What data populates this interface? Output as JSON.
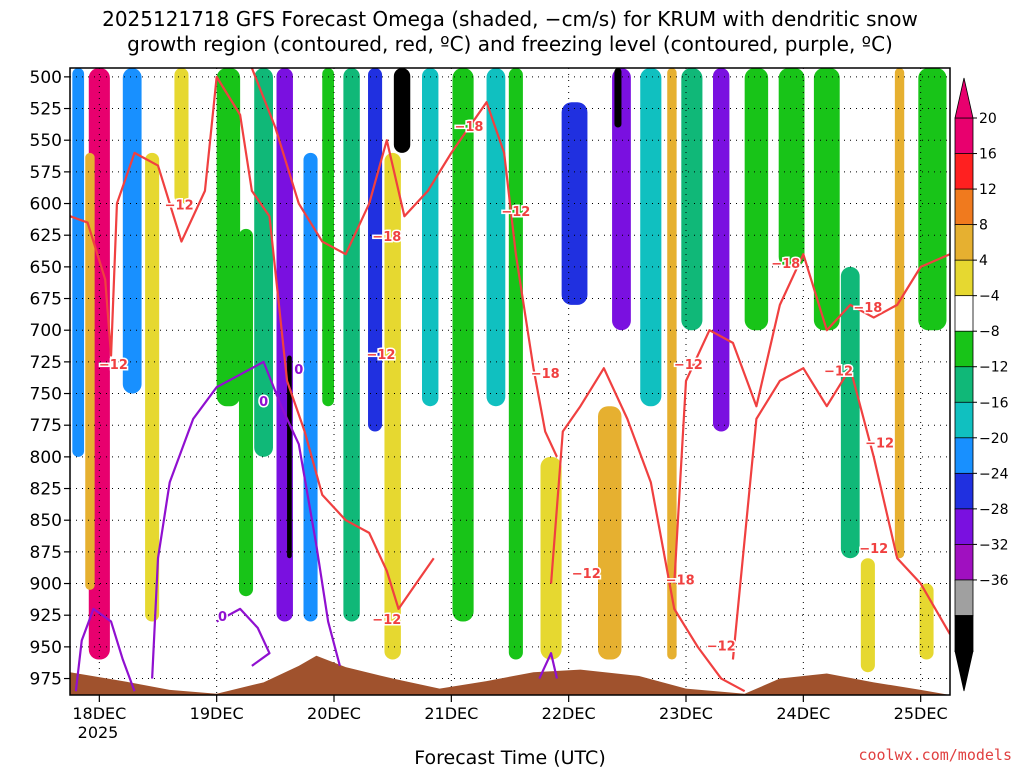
{
  "title": {
    "line1": "2025121718 GFS Forecast Omega (shaded, −cm/s) for KRUM with dendritic snow",
    "line2": "growth region (contoured, red, ºC) and freezing level (contoured, purple, ºC)"
  },
  "footer": {
    "xlabel": "Forecast Time (UTC)",
    "credit": "coolwx.com/models"
  },
  "chart_data": {
    "type": "heatmap",
    "x_axis": {
      "ticks": [
        "18DEC",
        "19DEC",
        "20DEC",
        "21DEC",
        "22DEC",
        "23DEC",
        "24DEC",
        "25DEC"
      ],
      "year_label": "2025",
      "range_days": [
        17.75,
        25.25
      ]
    },
    "y_axis": {
      "ticks": [
        500,
        525,
        550,
        575,
        600,
        625,
        650,
        675,
        700,
        725,
        750,
        775,
        800,
        825,
        850,
        875,
        900,
        925,
        950,
        975
      ],
      "range_hpa": [
        988,
        493
      ],
      "inverted": true
    },
    "grid": "dotted",
    "colorbar": {
      "labels": [
        "20",
        "16",
        "12",
        "8",
        "4",
        "−4",
        "−8",
        "−12",
        "−16",
        "−20",
        "−24",
        "−28",
        "−32",
        "−36"
      ],
      "colors": [
        "#e8006e",
        "#ff2020",
        "#f07a1e",
        "#e6b030",
        "#e6d830",
        "#ffffff",
        "#18c418",
        "#10b878",
        "#10c0c0",
        "#1890ff",
        "#2030e0",
        "#7a10e0",
        "#a010c0",
        "#a0a0a0",
        "#000000"
      ],
      "top_color": "#e8006e",
      "bottom_color": "#000000"
    },
    "omega_columns": [
      {
        "day": 18.0,
        "width": 0.18,
        "p_top": 493,
        "p_bottom": 960,
        "color": "#e8006e"
      },
      {
        "day": 17.92,
        "width": 0.08,
        "p_top": 560,
        "p_bottom": 905,
        "color": "#e6b030"
      },
      {
        "day": 17.82,
        "width": 0.1,
        "p_top": 493,
        "p_bottom": 800,
        "color": "#1890ff"
      },
      {
        "day": 18.28,
        "width": 0.16,
        "p_top": 493,
        "p_bottom": 750,
        "color": "#1890ff"
      },
      {
        "day": 18.45,
        "width": 0.12,
        "p_top": 560,
        "p_bottom": 930,
        "color": "#e6d830"
      },
      {
        "day": 18.7,
        "width": 0.12,
        "p_top": 493,
        "p_bottom": 600,
        "color": "#e6d830"
      },
      {
        "day": 19.1,
        "width": 0.2,
        "p_top": 493,
        "p_bottom": 760,
        "color": "#18c418"
      },
      {
        "day": 19.25,
        "width": 0.12,
        "p_top": 620,
        "p_bottom": 910,
        "color": "#18c418"
      },
      {
        "day": 19.4,
        "width": 0.16,
        "p_top": 493,
        "p_bottom": 800,
        "color": "#10b878"
      },
      {
        "day": 19.58,
        "width": 0.14,
        "p_top": 493,
        "p_bottom": 930,
        "color": "#7a10e0"
      },
      {
        "day": 19.62,
        "width": 0.04,
        "p_top": 720,
        "p_bottom": 880,
        "color": "#000000"
      },
      {
        "day": 19.8,
        "width": 0.12,
        "p_top": 560,
        "p_bottom": 930,
        "color": "#1890ff"
      },
      {
        "day": 19.95,
        "width": 0.1,
        "p_top": 493,
        "p_bottom": 760,
        "color": "#18c418"
      },
      {
        "day": 20.15,
        "width": 0.14,
        "p_top": 493,
        "p_bottom": 930,
        "color": "#10b878"
      },
      {
        "day": 20.35,
        "width": 0.12,
        "p_top": 493,
        "p_bottom": 780,
        "color": "#2030e0"
      },
      {
        "day": 20.5,
        "width": 0.14,
        "p_top": 560,
        "p_bottom": 960,
        "color": "#e6d830"
      },
      {
        "day": 20.58,
        "width": 0.14,
        "p_top": 493,
        "p_bottom": 560,
        "color": "#000000"
      },
      {
        "day": 20.82,
        "width": 0.14,
        "p_top": 493,
        "p_bottom": 760,
        "color": "#10c0c0"
      },
      {
        "day": 21.1,
        "width": 0.18,
        "p_top": 493,
        "p_bottom": 930,
        "color": "#18c418"
      },
      {
        "day": 21.38,
        "width": 0.16,
        "p_top": 493,
        "p_bottom": 760,
        "color": "#10c0c0"
      },
      {
        "day": 21.55,
        "width": 0.12,
        "p_top": 493,
        "p_bottom": 960,
        "color": "#18c418"
      },
      {
        "day": 21.85,
        "width": 0.18,
        "p_top": 800,
        "p_bottom": 960,
        "color": "#e6d830"
      },
      {
        "day": 22.05,
        "width": 0.22,
        "p_top": 520,
        "p_bottom": 680,
        "color": "#2030e0"
      },
      {
        "day": 22.35,
        "width": 0.2,
        "p_top": 760,
        "p_bottom": 960,
        "color": "#e6b030"
      },
      {
        "day": 22.45,
        "width": 0.16,
        "p_top": 493,
        "p_bottom": 700,
        "color": "#7a10e0"
      },
      {
        "day": 22.42,
        "width": 0.06,
        "p_top": 493,
        "p_bottom": 540,
        "color": "#000000"
      },
      {
        "day": 22.7,
        "width": 0.18,
        "p_top": 493,
        "p_bottom": 760,
        "color": "#10c0c0"
      },
      {
        "day": 22.88,
        "width": 0.08,
        "p_top": 493,
        "p_bottom": 960,
        "color": "#e6b030"
      },
      {
        "day": 23.05,
        "width": 0.18,
        "p_top": 493,
        "p_bottom": 700,
        "color": "#10b878"
      },
      {
        "day": 23.3,
        "width": 0.14,
        "p_top": 493,
        "p_bottom": 780,
        "color": "#7a10e0"
      },
      {
        "day": 23.6,
        "width": 0.2,
        "p_top": 493,
        "p_bottom": 700,
        "color": "#18c418"
      },
      {
        "day": 23.9,
        "width": 0.22,
        "p_top": 493,
        "p_bottom": 650,
        "color": "#18c418"
      },
      {
        "day": 24.2,
        "width": 0.22,
        "p_top": 493,
        "p_bottom": 700,
        "color": "#18c418"
      },
      {
        "day": 24.4,
        "width": 0.16,
        "p_top": 650,
        "p_bottom": 880,
        "color": "#10b878"
      },
      {
        "day": 24.55,
        "width": 0.12,
        "p_top": 880,
        "p_bottom": 970,
        "color": "#e6d830"
      },
      {
        "day": 24.82,
        "width": 0.08,
        "p_top": 493,
        "p_bottom": 880,
        "color": "#e6b030"
      },
      {
        "day": 25.1,
        "width": 0.24,
        "p_top": 493,
        "p_bottom": 700,
        "color": "#18c418"
      },
      {
        "day": 25.05,
        "width": 0.12,
        "p_top": 900,
        "p_bottom": 960,
        "color": "#e6d830"
      }
    ],
    "terrain": {
      "color": "#a0522d",
      "points": [
        [
          17.75,
          970
        ],
        [
          18.2,
          977
        ],
        [
          18.6,
          984
        ],
        [
          19.0,
          987
        ],
        [
          19.4,
          978
        ],
        [
          19.7,
          965
        ],
        [
          19.85,
          957
        ],
        [
          20.1,
          966
        ],
        [
          20.5,
          975
        ],
        [
          20.9,
          983
        ],
        [
          21.3,
          977
        ],
        [
          21.7,
          970
        ],
        [
          22.1,
          968
        ],
        [
          22.6,
          973
        ],
        [
          23.0,
          983
        ],
        [
          23.5,
          987
        ],
        [
          23.8,
          975
        ],
        [
          24.2,
          971
        ],
        [
          24.6,
          978
        ],
        [
          25.0,
          984
        ],
        [
          25.25,
          988
        ]
      ]
    },
    "dgz_contours": {
      "color": "#f04040",
      "label_minus12": "−12",
      "label_minus18": "−18",
      "minus12_west": [
        [
          17.75,
          610
        ],
        [
          17.9,
          615
        ],
        [
          18.05,
          660
        ],
        [
          18.1,
          720
        ],
        [
          18.15,
          600
        ],
        [
          18.3,
          560
        ],
        [
          18.5,
          570
        ],
        [
          18.7,
          630
        ],
        [
          18.9,
          590
        ],
        [
          19.0,
          500
        ],
        [
          19.2,
          530
        ],
        [
          19.3,
          590
        ],
        [
          19.45,
          610
        ],
        [
          19.6,
          740
        ],
        [
          19.75,
          780
        ],
        [
          19.9,
          830
        ],
        [
          20.1,
          850
        ],
        [
          20.3,
          860
        ],
        [
          20.45,
          890
        ],
        [
          20.55,
          920
        ],
        [
          20.7,
          900
        ],
        [
          20.85,
          880
        ]
      ],
      "minus18_west": [
        [
          19.3,
          493
        ],
        [
          19.5,
          540
        ],
        [
          19.7,
          600
        ],
        [
          19.9,
          630
        ],
        [
          20.1,
          640
        ],
        [
          20.3,
          600
        ],
        [
          20.45,
          550
        ],
        [
          20.6,
          610
        ],
        [
          20.8,
          590
        ],
        [
          21.0,
          560
        ],
        [
          21.15,
          540
        ],
        [
          21.3,
          520
        ],
        [
          21.45,
          560
        ],
        [
          21.55,
          640
        ],
        [
          21.7,
          730
        ],
        [
          21.8,
          780
        ],
        [
          21.9,
          800
        ]
      ],
      "minus12_east": [
        [
          21.85,
          900
        ],
        [
          21.95,
          780
        ],
        [
          22.1,
          760
        ],
        [
          22.3,
          730
        ],
        [
          22.5,
          770
        ],
        [
          22.7,
          820
        ],
        [
          22.9,
          920
        ],
        [
          23.1,
          950
        ],
        [
          23.3,
          975
        ],
        [
          23.5,
          985
        ]
      ],
      "minus18_east": [
        [
          22.9,
          900
        ],
        [
          23.0,
          740
        ],
        [
          23.2,
          700
        ],
        [
          23.4,
          710
        ],
        [
          23.6,
          760
        ],
        [
          23.8,
          680
        ],
        [
          24.0,
          640
        ],
        [
          24.2,
          700
        ],
        [
          24.4,
          680
        ],
        [
          24.6,
          690
        ],
        [
          24.8,
          680
        ],
        [
          25.0,
          650
        ],
        [
          25.25,
          640
        ]
      ],
      "minus12_far_east": [
        [
          23.4,
          960
        ],
        [
          23.6,
          770
        ],
        [
          23.8,
          740
        ],
        [
          24.0,
          730
        ],
        [
          24.2,
          760
        ],
        [
          24.4,
          730
        ],
        [
          24.6,
          800
        ],
        [
          24.8,
          880
        ],
        [
          25.0,
          900
        ],
        [
          25.25,
          940
        ]
      ]
    },
    "freezing_contours": {
      "color": "#9010d0",
      "label_zero": "0",
      "low_loop": [
        [
          17.8,
          985
        ],
        [
          17.85,
          945
        ],
        [
          17.95,
          920
        ],
        [
          18.1,
          930
        ],
        [
          18.2,
          960
        ],
        [
          18.3,
          985
        ]
      ],
      "main": [
        [
          18.45,
          975
        ],
        [
          18.5,
          880
        ],
        [
          18.6,
          820
        ],
        [
          18.8,
          770
        ],
        [
          19.0,
          745
        ],
        [
          19.2,
          735
        ],
        [
          19.4,
          725
        ],
        [
          19.55,
          760
        ],
        [
          19.7,
          790
        ],
        [
          19.85,
          870
        ],
        [
          19.95,
          930
        ],
        [
          20.05,
          965
        ]
      ],
      "small": [
        [
          19.0,
          930
        ],
        [
          19.2,
          920
        ],
        [
          19.35,
          935
        ],
        [
          19.45,
          955
        ],
        [
          19.3,
          965
        ]
      ],
      "east": [
        [
          21.75,
          975
        ],
        [
          21.85,
          955
        ],
        [
          21.9,
          975
        ]
      ]
    }
  }
}
